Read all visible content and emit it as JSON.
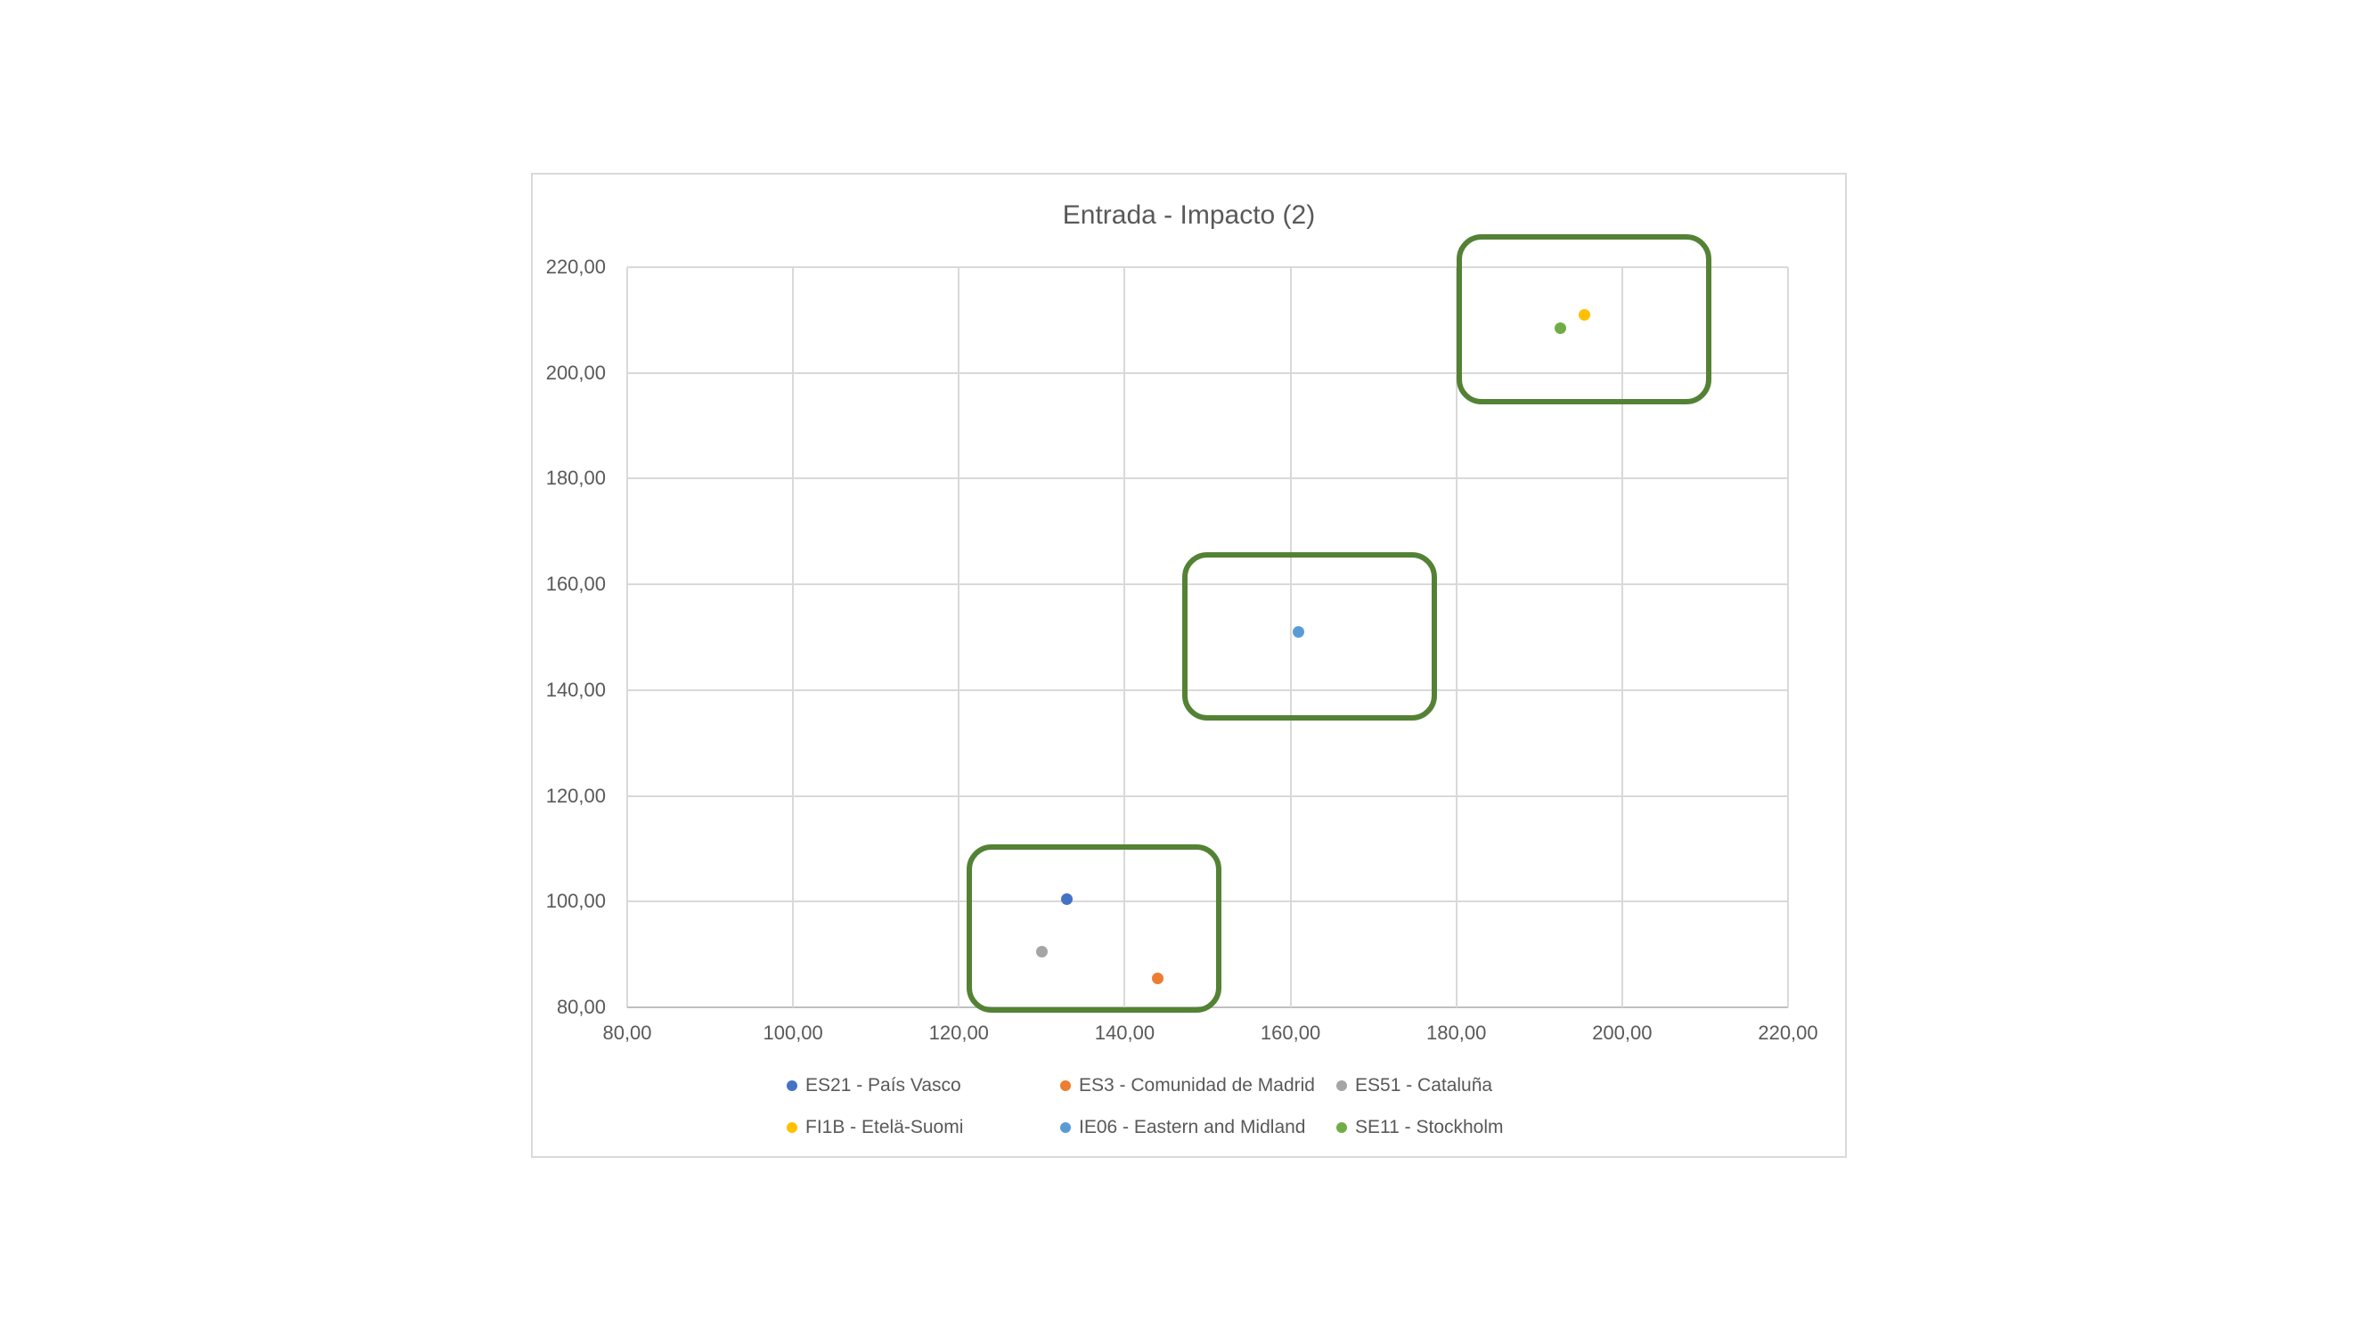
{
  "page": {
    "background": "#ffffff"
  },
  "chart": {
    "title": "Entrada - Impacto (2)",
    "text_color": "#595959",
    "gridline_color": "#d9d9d9",
    "axis_line_color": "#bfbfbf",
    "frame_border_color": "#d9d9d9",
    "annotation_color": "#548235"
  },
  "chart_data": {
    "type": "scatter",
    "title": "Entrada - Impacto (2)",
    "xlabel": "",
    "ylabel": "",
    "xlim": [
      80,
      220
    ],
    "ylim": [
      80,
      220
    ],
    "tick_step": 20,
    "x_tick_labels": [
      "80,00",
      "100,00",
      "120,00",
      "140,00",
      "160,00",
      "180,00",
      "200,00",
      "220,00"
    ],
    "y_tick_labels": [
      "80,00",
      "100,00",
      "120,00",
      "140,00",
      "160,00",
      "180,00",
      "200,00",
      "220,00"
    ],
    "grid": true,
    "legend_position": "bottom",
    "series": [
      {
        "name": "ES21 - País Vasco",
        "color": "#4472C4",
        "points": [
          [
            133.0,
            100.5
          ]
        ]
      },
      {
        "name": "ES3 - Comunidad de Madrid",
        "color": "#ED7D31",
        "points": [
          [
            144.0,
            85.5
          ]
        ]
      },
      {
        "name": "ES51 - Cataluña",
        "color": "#A5A5A5",
        "points": [
          [
            130.0,
            90.5
          ]
        ]
      },
      {
        "name": "FI1B - Etelä-Suomi",
        "color": "#FFC000",
        "points": [
          [
            195.5,
            211.0
          ]
        ]
      },
      {
        "name": "IE06 - Eastern and Midland",
        "color": "#5B9BD5",
        "points": [
          [
            161.0,
            151.0
          ]
        ]
      },
      {
        "name": "SE11 - Stockholm",
        "color": "#70AD47",
        "points": [
          [
            192.5,
            208.5
          ]
        ]
      }
    ],
    "annotations": [
      {
        "shape": "rounded-rect",
        "color": "#548235",
        "x1": 180.3,
        "y1": 194.5,
        "x2": 210.4,
        "y2": 225.8
      },
      {
        "shape": "rounded-rect",
        "color": "#548235",
        "x1": 147.3,
        "y1": 134.8,
        "x2": 177.3,
        "y2": 165.6
      },
      {
        "shape": "rounded-rect",
        "color": "#548235",
        "x1": 121.3,
        "y1": 79.5,
        "x2": 151.3,
        "y2": 110.3
      }
    ]
  }
}
